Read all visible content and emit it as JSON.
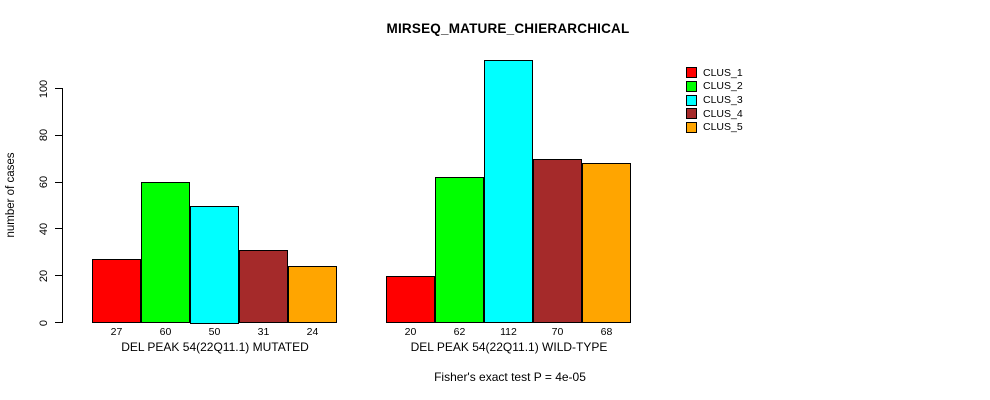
{
  "chart_data": {
    "type": "bar",
    "title": "MIRSEQ_MATURE_CHIERARCHICAL",
    "xlabel": "",
    "ylabel": "number of cases",
    "ylim": [
      0,
      115
    ],
    "yticks": [
      0,
      20,
      40,
      60,
      80,
      100
    ],
    "grid": false,
    "legend_position": "right",
    "legend": [
      {
        "label": "CLUS_1",
        "color": "#FF0000"
      },
      {
        "label": "CLUS_2",
        "color": "#00FF00"
      },
      {
        "label": "CLUS_3",
        "color": "#00FFFF"
      },
      {
        "label": "CLUS_4",
        "color": "#A52A2A"
      },
      {
        "label": "CLUS_5",
        "color": "#FFA500"
      }
    ],
    "groups": [
      {
        "label": "DEL PEAK 54(22Q11.1) MUTATED",
        "values": [
          27,
          60,
          50,
          31,
          24
        ]
      },
      {
        "label": "DEL PEAK 54(22Q11.1) WILD-TYPE",
        "values": [
          20,
          62,
          112,
          70,
          68
        ]
      }
    ],
    "annotation": "Fisher's exact test P = 4e-05"
  }
}
